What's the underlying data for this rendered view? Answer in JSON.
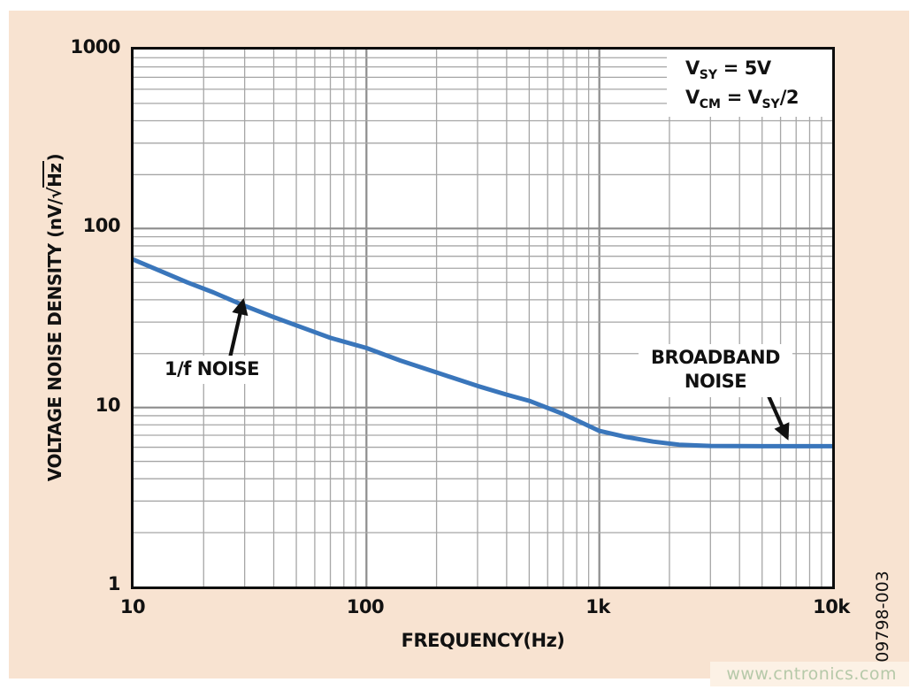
{
  "panel": {
    "background": "#f8e3d1"
  },
  "watermark": {
    "text": "www.cntronics.com",
    "color": "#b6c9a9"
  },
  "figure_number": "09798-003",
  "chart_data": {
    "type": "line",
    "title": "",
    "xlabel": "FREQUENCY(Hz)",
    "ylabel": "VOLTAGE NOISE DENSITY (nV/√Hz)",
    "x_scale": "log",
    "y_scale": "log",
    "xlim": [
      10,
      10000
    ],
    "ylim": [
      1,
      1000
    ],
    "grid": true,
    "legend_position": "top-right",
    "x_ticks": [
      {
        "value": 10,
        "label": "10"
      },
      {
        "value": 100,
        "label": "100"
      },
      {
        "value": 1000,
        "label": "1k"
      },
      {
        "value": 10000,
        "label": "10k"
      }
    ],
    "y_ticks": [
      {
        "value": 1000,
        "label": "1000"
      },
      {
        "value": 100,
        "label": "100"
      },
      {
        "value": 10,
        "label": "10"
      },
      {
        "value": 1,
        "label": "1"
      }
    ],
    "y_axis_title_parts": {
      "prefix": "VOLTAGE NOISE DENSITY (nV/",
      "radical": "√",
      "radicand": "Hz",
      "suffix": ")"
    },
    "legend_lines": {
      "line1": {
        "base": "V",
        "sub": "SY",
        "rest": " = 5V"
      },
      "line2": {
        "base": "V",
        "sub": "CM",
        "rest": " = V",
        "sub2": "SY",
        "rest2": "/2"
      }
    },
    "series": [
      {
        "name": "voltage noise density",
        "color": "#3a76bb",
        "width": 5,
        "points": [
          [
            10,
            67
          ],
          [
            13,
            58
          ],
          [
            17,
            50
          ],
          [
            22,
            44
          ],
          [
            30,
            37
          ],
          [
            40,
            32
          ],
          [
            55,
            27.5
          ],
          [
            70,
            24.5
          ],
          [
            100,
            21.5
          ],
          [
            140,
            18.3
          ],
          [
            200,
            15.7
          ],
          [
            300,
            13.2
          ],
          [
            400,
            11.8
          ],
          [
            500,
            10.9
          ],
          [
            700,
            9.2
          ],
          [
            1000,
            7.4
          ],
          [
            1300,
            6.85
          ],
          [
            1700,
            6.45
          ],
          [
            2200,
            6.2
          ],
          [
            3000,
            6.1
          ],
          [
            5000,
            6.08
          ],
          [
            10000,
            6.08
          ]
        ]
      }
    ],
    "annotations": [
      {
        "id": "one-over-f",
        "label": "1/f NOISE",
        "arrow": {
          "from": [
            26,
            19.2
          ],
          "to": [
            29.5,
            39.2
          ]
        }
      },
      {
        "id": "broadband",
        "label": "BROADBAND\nNOISE",
        "arrow": {
          "from": [
            5300,
            11.8
          ],
          "to": [
            6400,
            6.8
          ]
        }
      }
    ],
    "style": {
      "grid_minor_color": "#a6a6a6",
      "grid_major_color": "#8c8c8c",
      "axis_color": "#0d0d0d",
      "arrow_color": "#111111"
    }
  }
}
